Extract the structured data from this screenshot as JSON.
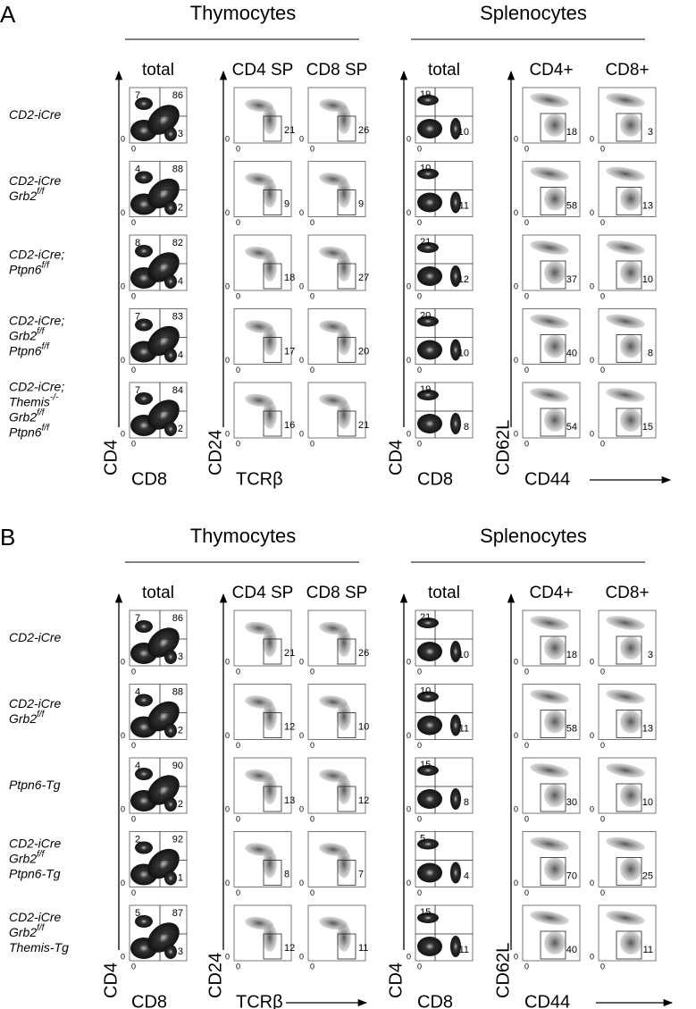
{
  "zero": "0",
  "panels": [
    {
      "label": "A",
      "groups": [
        "Thymocytes",
        "Splenocytes"
      ],
      "columns": [
        "total",
        "CD4 SP",
        "CD8 SP",
        "total",
        "CD4+",
        "CD8+"
      ],
      "y_axes": [
        "CD4",
        "CD24",
        "CD4",
        "CD62L"
      ],
      "x_axes": [
        "CD8",
        "TCRβ",
        "CD8",
        "CD44"
      ],
      "rows": [
        {
          "genotype": [
            {
              "text": "CD2-iCre"
            }
          ],
          "thy_total": [
            7,
            86,
            3
          ],
          "cd4sp": 21,
          "cd8sp": 26,
          "spl_total": [
            19,
            10
          ],
          "cd4": 18,
          "cd8": 3
        },
        {
          "genotype": [
            {
              "text": "CD2-iCre"
            },
            {
              "text": "Grb2",
              "sup": "f/f"
            }
          ],
          "thy_total": [
            4,
            88,
            2
          ],
          "cd4sp": 9,
          "cd8sp": 9,
          "spl_total": [
            10,
            11
          ],
          "cd4": 58,
          "cd8": 13
        },
        {
          "genotype": [
            {
              "text": "CD2-iCre;"
            },
            {
              "text": "Ptpn6",
              "sup": "f/f"
            }
          ],
          "thy_total": [
            8,
            82,
            4
          ],
          "cd4sp": 18,
          "cd8sp": 27,
          "spl_total": [
            21,
            12
          ],
          "cd4": 37,
          "cd8": 10
        },
        {
          "genotype": [
            {
              "text": "CD2-iCre;"
            },
            {
              "text": "Grb2",
              "sup": "f/f"
            },
            {
              "text": "Ptpn6",
              "sup": "f/f"
            }
          ],
          "thy_total": [
            7,
            83,
            4
          ],
          "cd4sp": 17,
          "cd8sp": 20,
          "spl_total": [
            20,
            10
          ],
          "cd4": 40,
          "cd8": 8
        },
        {
          "genotype": [
            {
              "text": "CD2-iCre;"
            },
            {
              "text": "Themis",
              "sup": "-/-"
            },
            {
              "text": "Grb2",
              "sup": "f/f"
            },
            {
              "text": "Ptpn6",
              "sup": "f/f"
            }
          ],
          "thy_total": [
            7,
            84,
            2
          ],
          "cd4sp": 16,
          "cd8sp": 21,
          "spl_total": [
            19,
            8
          ],
          "cd4": 54,
          "cd8": 15
        }
      ]
    },
    {
      "label": "B",
      "groups": [
        "Thymocytes",
        "Splenocytes"
      ],
      "columns": [
        "total",
        "CD4 SP",
        "CD8 SP",
        "total",
        "CD4+",
        "CD8+"
      ],
      "y_axes": [
        "CD4",
        "CD24",
        "CD4",
        "CD62L"
      ],
      "x_axes": [
        "CD8",
        "TCRβ",
        "CD8",
        "CD44"
      ],
      "rows": [
        {
          "genotype": [
            {
              "text": "CD2-iCre"
            }
          ],
          "thy_total": [
            7,
            86,
            3
          ],
          "cd4sp": 21,
          "cd8sp": 26,
          "spl_total": [
            21,
            10
          ],
          "cd4": 18,
          "cd8": 3
        },
        {
          "genotype": [
            {
              "text": "CD2-iCre"
            },
            {
              "text": "Grb2",
              "sup": "f/f"
            }
          ],
          "thy_total": [
            4,
            88,
            2
          ],
          "cd4sp": 12,
          "cd8sp": 10,
          "spl_total": [
            10,
            11
          ],
          "cd4": 58,
          "cd8": 13
        },
        {
          "genotype": [
            {
              "text": "Ptpn6-Tg"
            }
          ],
          "thy_total": [
            4,
            90,
            2
          ],
          "cd4sp": 13,
          "cd8sp": 12,
          "spl_total": [
            15,
            8
          ],
          "cd4": 30,
          "cd8": 10
        },
        {
          "genotype": [
            {
              "text": "CD2-iCre"
            },
            {
              "text": "Grb2",
              "sup": "f/f"
            },
            {
              "text": "Ptpn6-Tg"
            }
          ],
          "thy_total": [
            2,
            92,
            1
          ],
          "cd4sp": 8,
          "cd8sp": 7,
          "spl_total": [
            5,
            4
          ],
          "cd4": 70,
          "cd8": 25
        },
        {
          "genotype": [
            {
              "text": "CD2-iCre"
            },
            {
              "text": "Grb2",
              "sup": "f/f"
            },
            {
              "text": "Themis-Tg"
            }
          ],
          "thy_total": [
            5,
            87,
            3
          ],
          "cd4sp": 12,
          "cd8sp": 11,
          "spl_total": [
            15,
            11
          ],
          "cd4": 40,
          "cd8": 11
        }
      ]
    }
  ]
}
